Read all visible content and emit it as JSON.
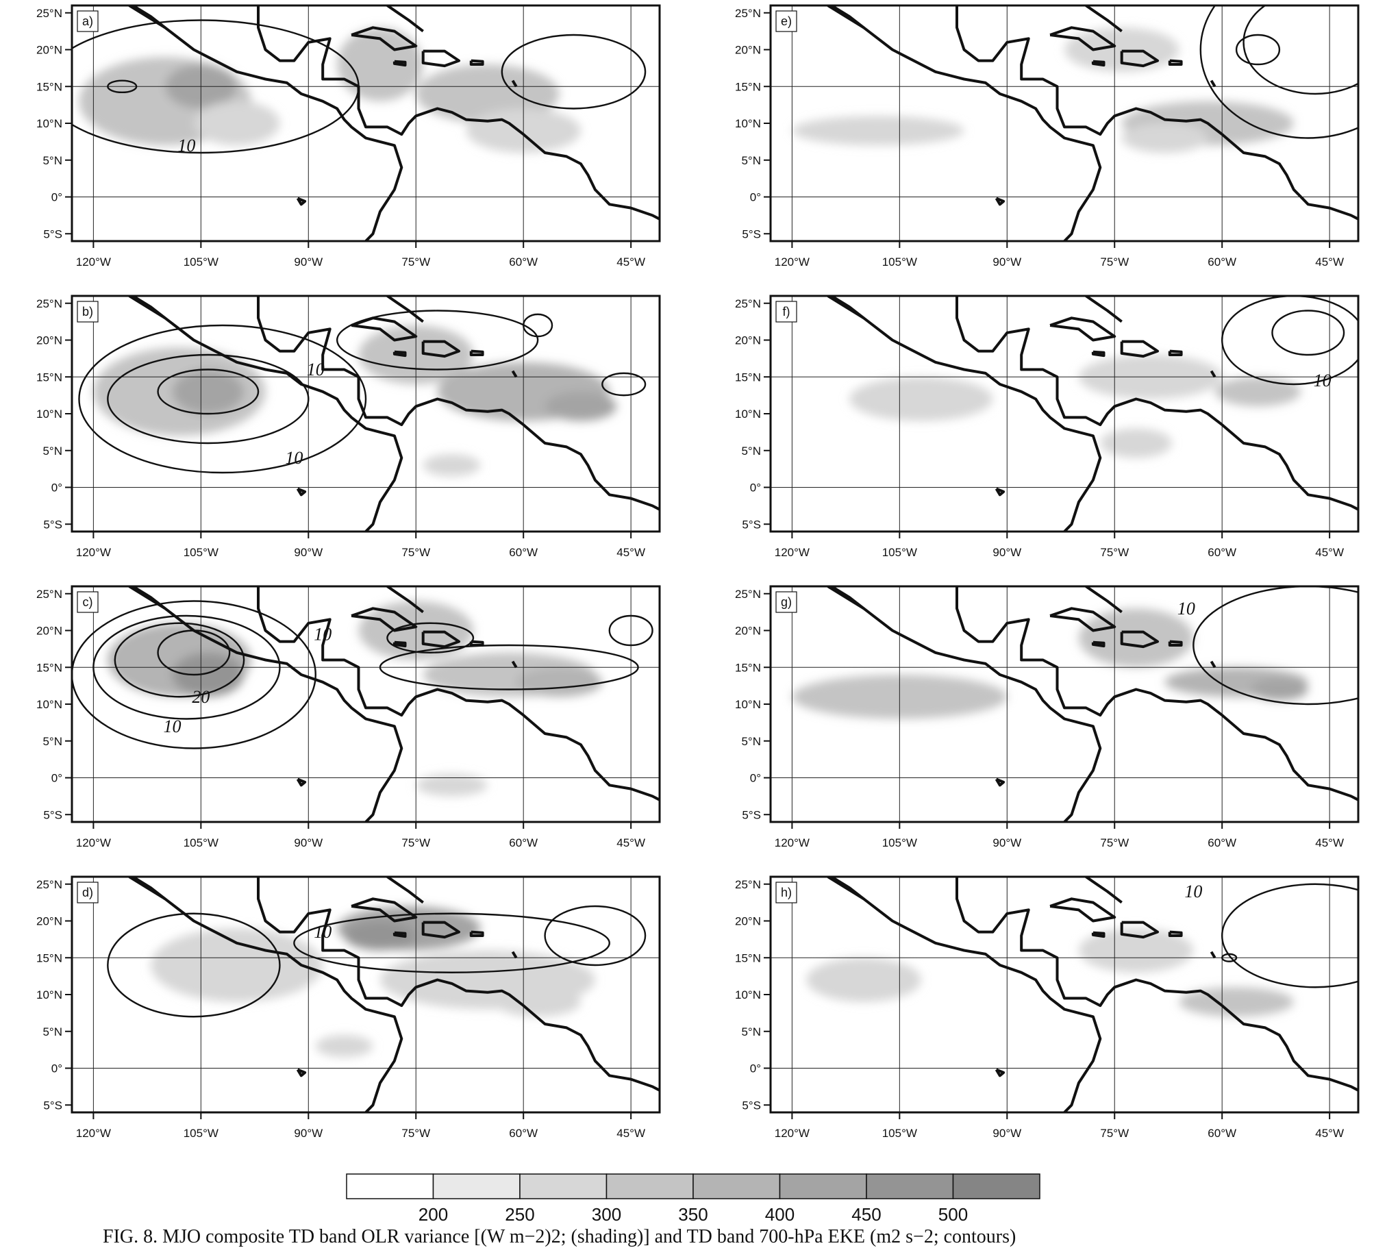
{
  "figure": {
    "caption": "FIG. 8. MJO composite TD band OLR variance [(W m−2)2; (shading)] and TD band 700-hPa EKE (m2 s−2; contours)"
  },
  "axes": {
    "lat_ticks": [
      "25°N",
      "20°N",
      "15°N",
      "10°N",
      "5°N",
      "0°",
      "5°S"
    ],
    "lon_ticks": [
      "120°W",
      "105°W",
      "90°W",
      "75°W",
      "60°W",
      "45°W"
    ]
  },
  "colors": {
    "land_outline": "#111111",
    "shade": [
      "#ffffff",
      "#e9e9e9",
      "#d7d7d7",
      "#c4c4c4",
      "#b4b4b4",
      "#a4a4a4",
      "#949494",
      "#858585"
    ]
  },
  "panels": [
    {
      "id": "a",
      "label": "a)",
      "contour_labels": [
        "10"
      ]
    },
    {
      "id": "b",
      "label": "b)",
      "contour_labels": [
        "10",
        "10"
      ]
    },
    {
      "id": "c",
      "label": "c)",
      "contour_labels": [
        "20",
        "10",
        "10"
      ]
    },
    {
      "id": "d",
      "label": "d)",
      "contour_labels": [
        "10"
      ]
    },
    {
      "id": "e",
      "label": "e)",
      "contour_labels": []
    },
    {
      "id": "f",
      "label": "f)",
      "contour_labels": [
        "10"
      ]
    },
    {
      "id": "g",
      "label": "g)",
      "contour_labels": [
        "10"
      ]
    },
    {
      "id": "h",
      "label": "h)",
      "contour_labels": [
        "10"
      ]
    }
  ],
  "colorbar": {
    "ticks": [
      "200",
      "250",
      "300",
      "350",
      "400",
      "450",
      "500"
    ]
  }
}
